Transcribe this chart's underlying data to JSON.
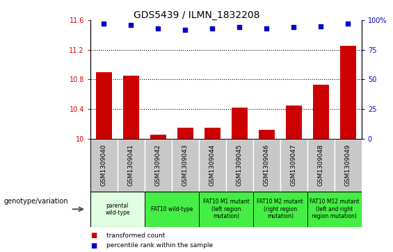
{
  "title": "GDS5439 / ILMN_1832208",
  "samples": [
    "GSM1309040",
    "GSM1309041",
    "GSM1309042",
    "GSM1309043",
    "GSM1309044",
    "GSM1309045",
    "GSM1309046",
    "GSM1309047",
    "GSM1309048",
    "GSM1309049"
  ],
  "bar_values": [
    10.9,
    10.85,
    10.05,
    10.15,
    10.15,
    10.42,
    10.12,
    10.45,
    10.73,
    11.25
  ],
  "percentile_values": [
    97,
    96,
    93,
    92,
    93,
    94,
    93,
    94,
    95,
    97
  ],
  "ylim_left": [
    10,
    11.6
  ],
  "ylim_right": [
    0,
    100
  ],
  "yticks_left": [
    10,
    10.4,
    10.8,
    11.2,
    11.6
  ],
  "ytick_labels_left": [
    "10",
    "10.4",
    "10.8",
    "11.2",
    "11.6"
  ],
  "yticks_right": [
    0,
    25,
    50,
    75,
    100
  ],
  "bar_color": "#cc0000",
  "dot_color": "#0000cc",
  "genotype_groups": [
    {
      "label": "parental\nwild-type",
      "start": 0,
      "end": 2,
      "color": "#e0ffe0"
    },
    {
      "label": "FAT10 wild-type",
      "start": 2,
      "end": 4,
      "color": "#44ee44"
    },
    {
      "label": "FAT10 M1 mutant\n(left region\nmutation)",
      "start": 4,
      "end": 6,
      "color": "#44ee44"
    },
    {
      "label": "FAT10 M2 mutant\n(right region\nmutation)",
      "start": 6,
      "end": 8,
      "color": "#44ee44"
    },
    {
      "label": "FAT10 M12 mutant\n(left and right\nregion mutation)",
      "start": 8,
      "end": 10,
      "color": "#44ee44"
    }
  ],
  "legend_bar_label": "transformed count",
  "legend_dot_label": "percentile rank within the sample",
  "genotype_label": "genotype/variation",
  "sample_bg_color": "#c8c8c8",
  "sample_border_color": "#ffffff"
}
